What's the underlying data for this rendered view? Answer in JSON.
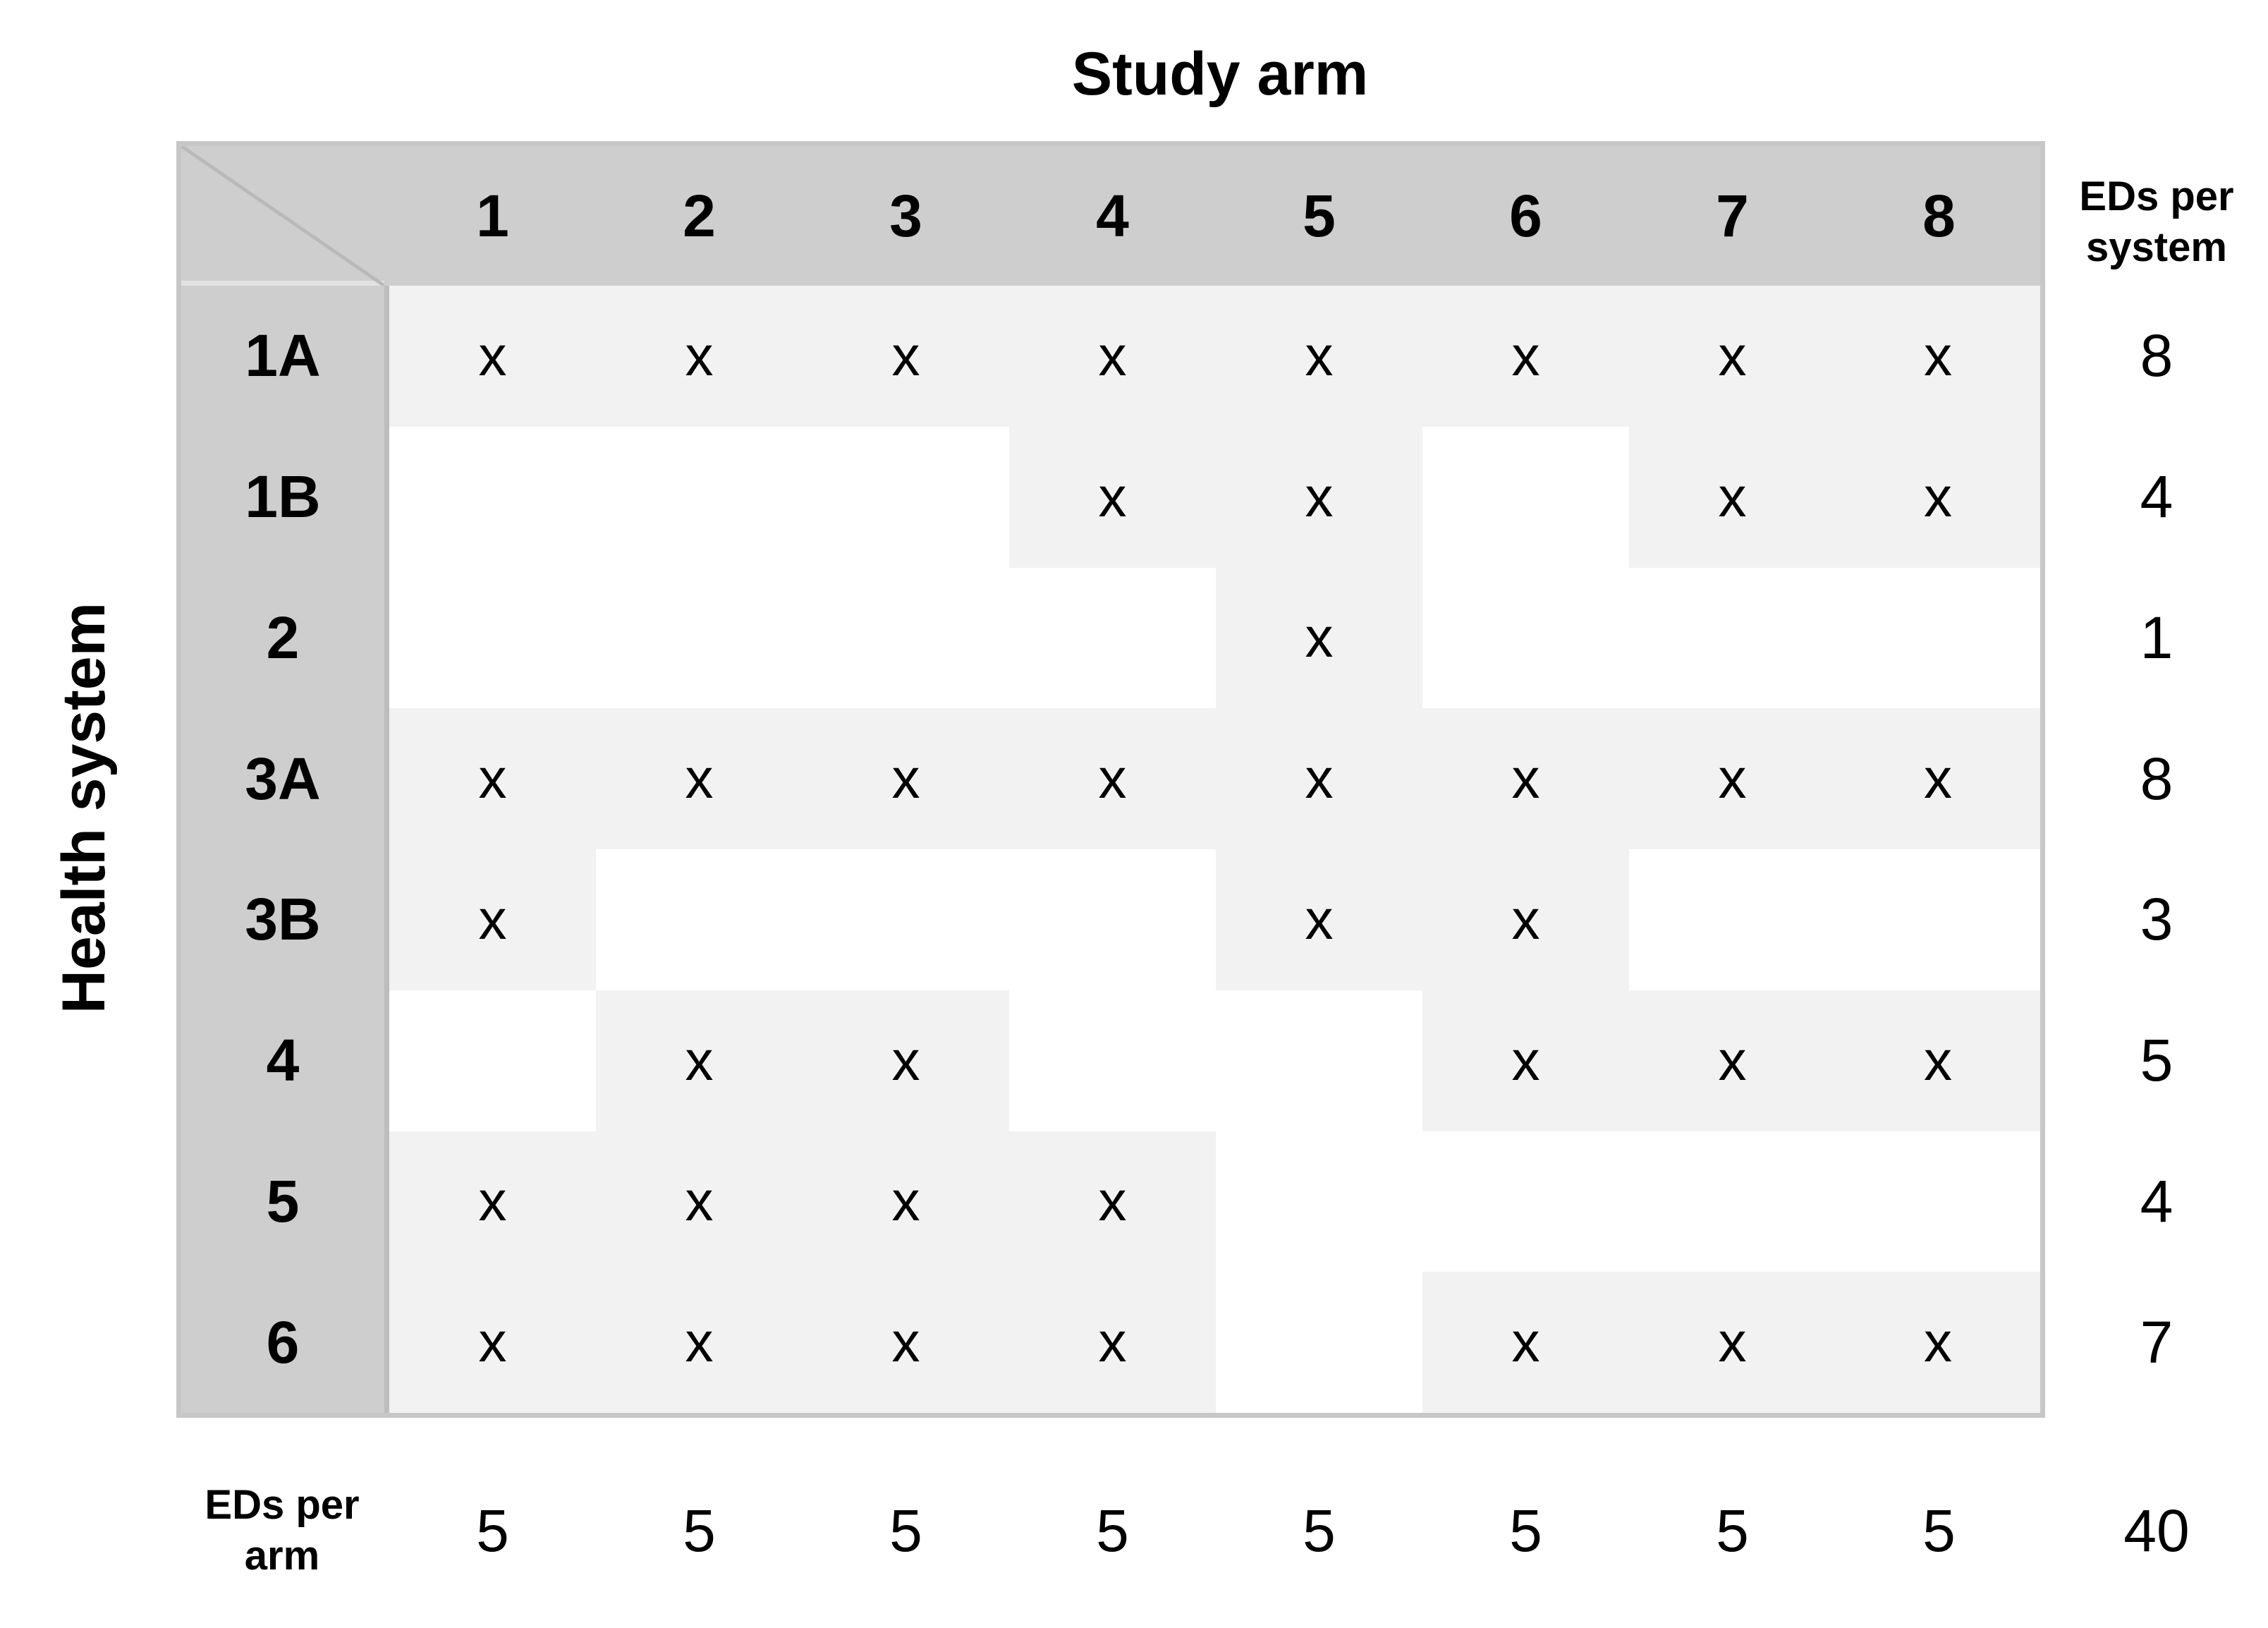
{
  "col_axis_title": "Study arm",
  "row_axis_title": "Health system",
  "arms": [
    "1",
    "2",
    "3",
    "4",
    "5",
    "6",
    "7",
    "8"
  ],
  "rows": [
    {
      "label": "1A",
      "cells": [
        "x",
        "x",
        "x",
        "x",
        "x",
        "x",
        "x",
        "x"
      ],
      "total": "8"
    },
    {
      "label": "1B",
      "cells": [
        "",
        "",
        "",
        "x",
        "x",
        "",
        "x",
        "x"
      ],
      "total": "4"
    },
    {
      "label": "2",
      "cells": [
        "",
        "",
        "",
        "",
        "x",
        "",
        "",
        ""
      ],
      "total": "1"
    },
    {
      "label": "3A",
      "cells": [
        "x",
        "x",
        "x",
        "x",
        "x",
        "x",
        "x",
        "x"
      ],
      "total": "8"
    },
    {
      "label": "3B",
      "cells": [
        "x",
        "",
        "",
        "",
        "x",
        "x",
        "",
        ""
      ],
      "total": "3"
    },
    {
      "label": "4",
      "cells": [
        "",
        "x",
        "x",
        "",
        "",
        "x",
        "x",
        "x"
      ],
      "total": "5"
    },
    {
      "label": "5",
      "cells": [
        "x",
        "x",
        "x",
        "x",
        "",
        "",
        "",
        ""
      ],
      "total": "4"
    },
    {
      "label": "6",
      "cells": [
        "x",
        "x",
        "x",
        "x",
        "",
        "x",
        "x",
        "x"
      ],
      "total": "7"
    }
  ],
  "row_total_label_line1": "EDs per",
  "row_total_label_line2": "system",
  "col_total_label_line1": "EDs per",
  "col_total_label_line2": "arm",
  "col_totals": [
    "5",
    "5",
    "5",
    "5",
    "5",
    "5",
    "5",
    "5"
  ],
  "grand_total": "40",
  "colors": {
    "band": "#cecece",
    "shaded_cell": "#f2f2f2",
    "border": "#c7c7c7"
  }
}
